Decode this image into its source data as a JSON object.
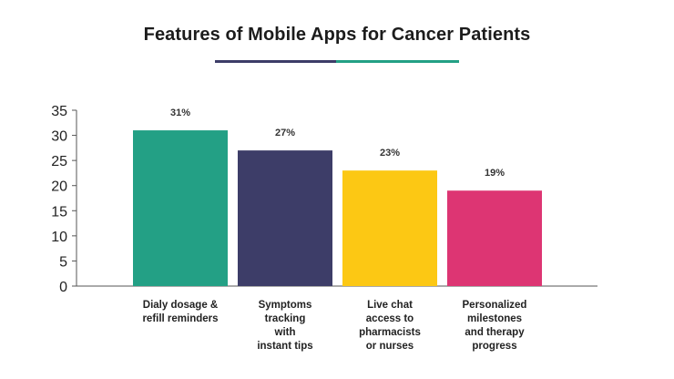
{
  "chart_data": {
    "type": "bar",
    "title": "Features of Mobile Apps for Cancer Patients",
    "categories": [
      [
        "Dialy dosage &",
        "refill reminders"
      ],
      [
        "Symptoms",
        "tracking",
        "with",
        "instant tips"
      ],
      [
        "Live chat",
        "access to",
        "pharmacists",
        "or nurses"
      ],
      [
        "Personalized",
        "milestones",
        "and therapy",
        "progress"
      ]
    ],
    "values": [
      31,
      27,
      23,
      19
    ],
    "value_labels": [
      "31%",
      "27%",
      "23%",
      "19%"
    ],
    "colors": [
      "#23a085",
      "#3d3d68",
      "#fcc814",
      "#dd3573"
    ],
    "yticks": [
      0,
      5,
      10,
      15,
      20,
      25,
      30,
      35
    ],
    "ylim": [
      0,
      35
    ],
    "xlabel": "",
    "ylabel": "",
    "grid": false,
    "legend": "none"
  },
  "decoration": {
    "underline_colors": [
      "#3d3d68",
      "#23a085"
    ]
  }
}
